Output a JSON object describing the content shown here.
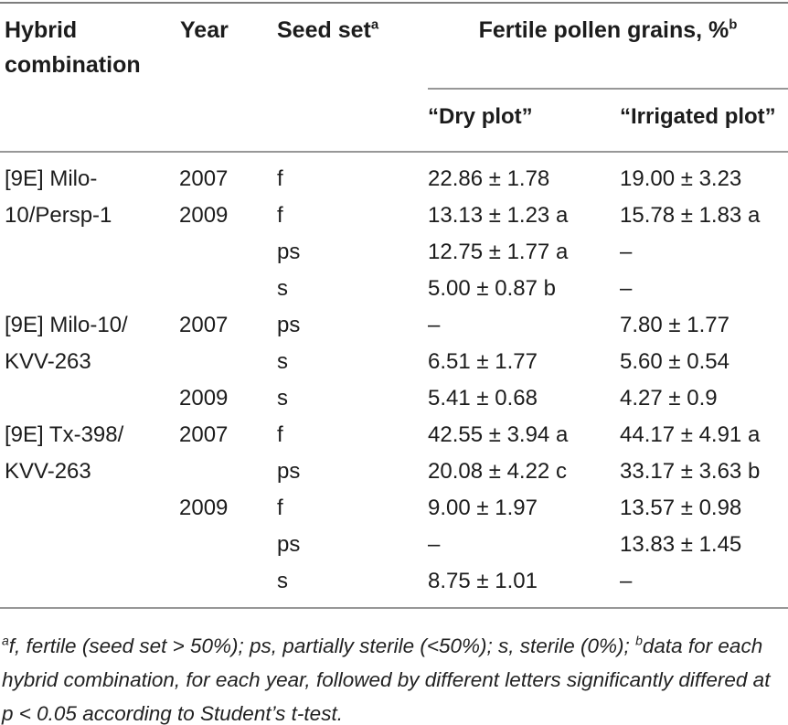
{
  "table": {
    "header": {
      "hybrid": "Hybrid combination",
      "year": "Year",
      "seed_set": "Seed set",
      "seed_set_sup": "a",
      "pollen": "Fertile pollen grains, %",
      "pollen_sup": "b",
      "dry_plot": "“Dry plot”",
      "irrigated_plot": "“Irrigated plot”"
    },
    "rows": [
      {
        "hybrid": "[9E] Milo-",
        "year": "2007",
        "seed": "f",
        "dry": "22.86 ± 1.78",
        "irrigated": "19.00 ± 3.23"
      },
      {
        "hybrid": "10/Persp-1",
        "year": "2009",
        "seed": "f",
        "dry": "13.13 ± 1.23 a",
        "irrigated": "15.78 ± 1.83 a"
      },
      {
        "hybrid": "",
        "year": "",
        "seed": "ps",
        "dry": "12.75 ± 1.77 a",
        "irrigated": "–"
      },
      {
        "hybrid": "",
        "year": "",
        "seed": "s",
        "dry": "5.00 ± 0.87 b",
        "irrigated": "–"
      },
      {
        "hybrid": "[9E] Milo-10/",
        "year": "2007",
        "seed": "ps",
        "dry": "–",
        "irrigated": "7.80 ± 1.77"
      },
      {
        "hybrid": "KVV-263",
        "year": "",
        "seed": "s",
        "dry": "6.51 ± 1.77",
        "irrigated": "5.60 ± 0.54"
      },
      {
        "hybrid": "",
        "year": "2009",
        "seed": "s",
        "dry": "5.41 ± 0.68",
        "irrigated": "4.27 ± 0.9"
      },
      {
        "hybrid": "[9E] Tx-398/",
        "year": "2007",
        "seed": "f",
        "dry": "42.55 ± 3.94 a",
        "irrigated": "44.17 ± 4.91 a"
      },
      {
        "hybrid": "KVV-263",
        "year": "",
        "seed": "ps",
        "dry": "20.08 ± 4.22 c",
        "irrigated": "33.17 ± 3.63 b"
      },
      {
        "hybrid": "",
        "year": "2009",
        "seed": "f",
        "dry": "9.00 ± 1.97",
        "irrigated": "13.57 ± 0.98"
      },
      {
        "hybrid": "",
        "year": "",
        "seed": "ps",
        "dry": "–",
        "irrigated": "13.83 ± 1.45"
      },
      {
        "hybrid": "",
        "year": "",
        "seed": "s",
        "dry": "8.75 ± 1.01",
        "irrigated": "–"
      }
    ]
  },
  "footnote": {
    "sup_a": "a",
    "text_a": "f, fertile (seed set > 50%); ps, partially sterile (<50%); s, sterile (0%); ",
    "sup_b": "b",
    "text_b": "data for each hybrid combination, for each year, followed by different letters significantly differed at p < 0.05 according to Student’s t-test."
  }
}
